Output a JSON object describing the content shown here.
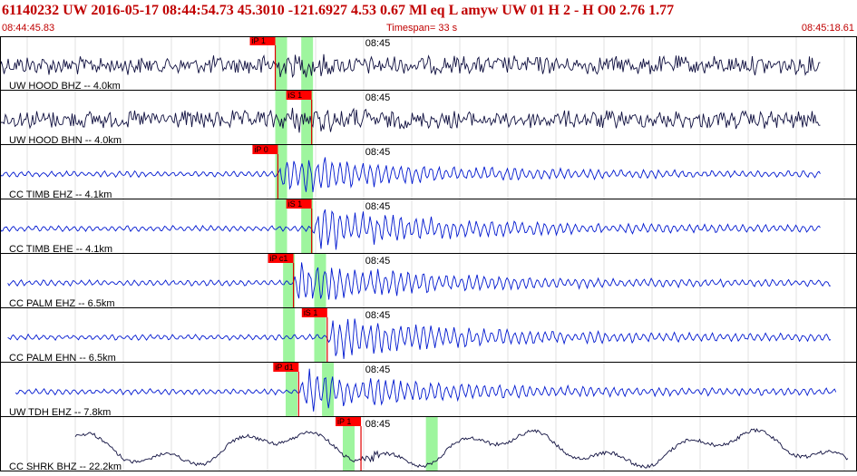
{
  "header": {
    "line": "61140232 UW 2016-05-17 08:44:54.73    45.3010 -121.6927    4.53   0.67 Ml   eq   L  amyw      UW 01   H    2   -   H O0      2.76   1.77",
    "time_left": "08:44:45.83",
    "timespan": "Timespan=  33 s",
    "time_right": "08:45:18.61"
  },
  "minute_label": "08:45",
  "colors": {
    "header_text": "#c00000",
    "pick_box": "#ff0000",
    "pick_line": "#e00000",
    "shade": "#9ef59e",
    "grid": "#e0e0e0",
    "frame": "#000000",
    "dark_trace": "#101040",
    "blue_trace": "#0018d0"
  },
  "traces": [
    {
      "label": "UW HOOD BHZ -- 4.0km",
      "pick": "iP 1",
      "color": "dark",
      "style": "noise",
      "onset_sec": 10.6,
      "start_sec": 0.0,
      "end_sec": 31.6,
      "shades": [
        10.6,
        11.6
      ]
    },
    {
      "label": "UW HOOD BHN -- 4.0km",
      "pick": "iS 1",
      "color": "dark",
      "style": "noise",
      "onset_sec": 12.0,
      "start_sec": 0.0,
      "end_sec": 31.6,
      "shades": [
        10.6,
        11.6
      ]
    },
    {
      "label": "CC TIMB EHZ -- 4.1km",
      "pick": "iP 0",
      "color": "blue",
      "style": "event",
      "onset_sec": 10.7,
      "start_sec": 0.0,
      "end_sec": 31.6,
      "shades": [
        10.6,
        11.6
      ]
    },
    {
      "label": "CC TIMB EHE -- 4.1km",
      "pick": "iS 1",
      "color": "blue",
      "style": "event",
      "onset_sec": 12.0,
      "start_sec": 0.0,
      "end_sec": 31.6,
      "shades": [
        10.6,
        11.6
      ]
    },
    {
      "label": "CC PALM EHZ -- 6.5km",
      "pick": "iP c1",
      "color": "blue",
      "style": "event",
      "onset_sec": 11.3,
      "start_sec": 0.3,
      "end_sec": 32.0,
      "shades": [
        10.9,
        12.1
      ]
    },
    {
      "label": "CC PALM EHN -- 6.5km",
      "pick": "iS 1",
      "color": "blue",
      "style": "event",
      "onset_sec": 12.6,
      "start_sec": 0.3,
      "end_sec": 32.0,
      "shades": [
        10.9,
        12.1
      ]
    },
    {
      "label": "UW TDH EHZ -- 7.8km",
      "pick": "iP d1",
      "color": "blue",
      "style": "event",
      "onset_sec": 11.5,
      "start_sec": 0.6,
      "end_sec": 32.2,
      "shades": [
        11.0,
        12.4
      ]
    },
    {
      "label": "CC SHRK BHZ -- 22.2km",
      "pick": "iP 1",
      "color": "dark",
      "style": "long",
      "onset_sec": 13.9,
      "start_sec": 2.9,
      "end_sec": 32.7,
      "shades": [
        13.2,
        16.4
      ]
    }
  ]
}
